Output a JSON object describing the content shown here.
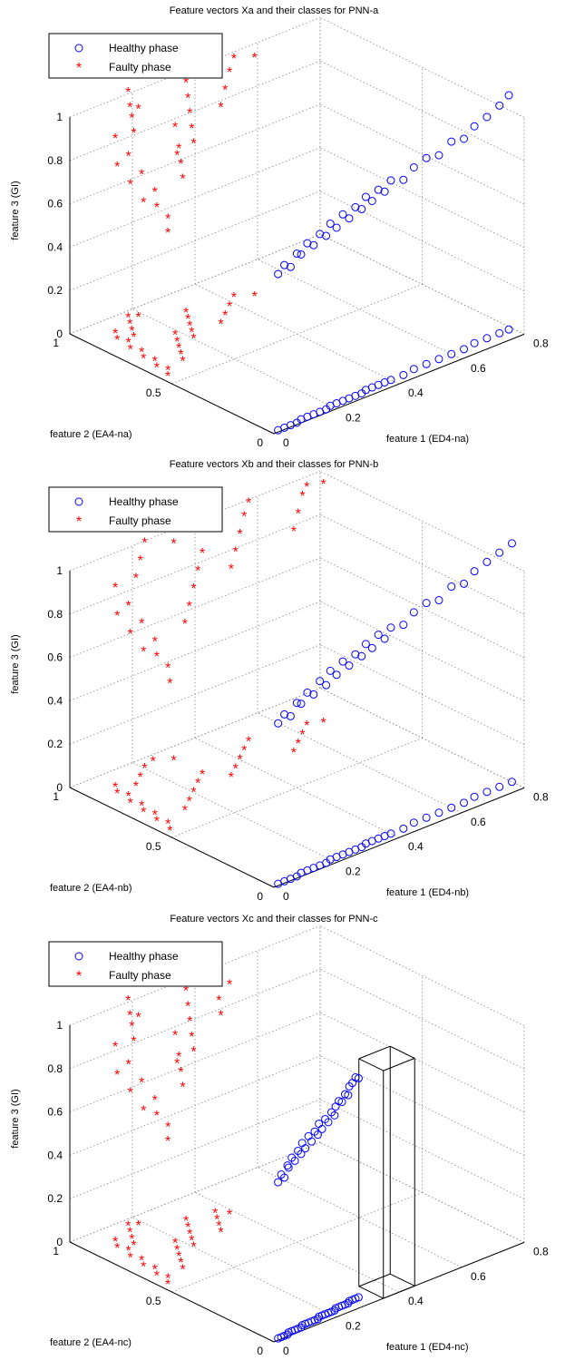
{
  "chart_data": [
    {
      "type": "scatter",
      "projection": "3d",
      "grid": true,
      "legend_placement": "top-left",
      "title": "Feature vectors Xa and their classes for PNN-a",
      "xlabel": "feature 1 (ED4-na)",
      "ylabel": "feature 2 (EA4-na)",
      "zlabel": "feature 3 (GI)",
      "xlim": [
        0,
        0.8
      ],
      "ylim": [
        0,
        1
      ],
      "zlim": [
        0,
        1
      ],
      "xticks": [
        "0",
        "0.2",
        "0.4",
        "0.6",
        "0.8"
      ],
      "yticks": [
        "0",
        "0.5",
        "1"
      ],
      "zticks": [
        "0",
        "0.2",
        "0.4",
        "0.6",
        "0.8",
        "1"
      ],
      "series": [
        {
          "name": "Healthy phase",
          "marker": "circle",
          "color": "#0000ff",
          "points": [
            [
              0.02,
              0.01,
              0.72
            ],
            [
              0.04,
              0.01,
              0.75
            ],
            [
              0.06,
              0.01,
              0.73
            ],
            [
              0.08,
              0.01,
              0.78
            ],
            [
              0.1,
              0.02,
              0.76
            ],
            [
              0.12,
              0.02,
              0.8
            ],
            [
              0.14,
              0.02,
              0.78
            ],
            [
              0.16,
              0.02,
              0.82
            ],
            [
              0.18,
              0.02,
              0.8
            ],
            [
              0.2,
              0.03,
              0.84
            ],
            [
              0.22,
              0.03,
              0.81
            ],
            [
              0.24,
              0.03,
              0.86
            ],
            [
              0.26,
              0.03,
              0.83
            ],
            [
              0.28,
              0.03,
              0.87
            ],
            [
              0.3,
              0.03,
              0.85
            ],
            [
              0.32,
              0.04,
              0.89
            ],
            [
              0.34,
              0.04,
              0.86
            ],
            [
              0.36,
              0.04,
              0.9
            ],
            [
              0.38,
              0.04,
              0.88
            ],
            [
              0.4,
              0.04,
              0.92
            ],
            [
              0.44,
              0.04,
              0.9
            ],
            [
              0.48,
              0.05,
              0.93
            ],
            [
              0.52,
              0.05,
              0.95
            ],
            [
              0.56,
              0.05,
              0.94
            ],
            [
              0.6,
              0.05,
              0.98
            ],
            [
              0.64,
              0.05,
              0.97
            ],
            [
              0.68,
              0.06,
              1.0
            ],
            [
              0.72,
              0.06,
              1.02
            ],
            [
              0.76,
              0.06,
              1.05
            ],
            [
              0.79,
              0.06,
              1.08
            ]
          ]
        },
        {
          "name": "Faulty phase",
          "marker": "asterisk",
          "color": "#ff0000",
          "points": [
            [
              0.02,
              0.55,
              0.66
            ],
            [
              0.04,
              0.58,
              0.7
            ],
            [
              0.03,
              0.62,
              0.74
            ],
            [
              0.05,
              0.66,
              0.78
            ],
            [
              0.04,
              0.7,
              0.72
            ],
            [
              0.06,
              0.74,
              0.82
            ],
            [
              0.05,
              0.78,
              0.76
            ],
            [
              0.07,
              0.82,
              0.86
            ],
            [
              0.06,
              0.86,
              0.8
            ],
            [
              0.08,
              0.9,
              0.9
            ],
            [
              0.1,
              0.6,
              0.84
            ],
            [
              0.12,
              0.64,
              0.88
            ],
            [
              0.14,
              0.68,
              0.92
            ],
            [
              0.16,
              0.72,
              0.86
            ],
            [
              0.18,
              0.76,
              0.96
            ],
            [
              0.1,
              0.84,
              0.94
            ],
            [
              0.12,
              0.88,
              0.98
            ],
            [
              0.14,
              0.92,
              1.0
            ],
            [
              0.16,
              0.96,
              1.04
            ],
            [
              0.18,
              0.94,
              0.96
            ],
            [
              0.2,
              0.7,
              0.9
            ],
            [
              0.22,
              0.74,
              0.94
            ],
            [
              0.24,
              0.78,
              0.98
            ],
            [
              0.26,
              0.82,
              1.02
            ],
            [
              0.28,
              0.86,
              1.06
            ],
            [
              0.3,
              0.72,
              1.0
            ],
            [
              0.34,
              0.76,
              1.04
            ],
            [
              0.38,
              0.8,
              1.08
            ],
            [
              0.42,
              0.84,
              1.12
            ],
            [
              0.46,
              0.8,
              1.1
            ]
          ]
        }
      ]
    },
    {
      "type": "scatter",
      "projection": "3d",
      "grid": true,
      "legend_placement": "top-left",
      "title": "Feature vectors Xb and their classes for PNN-b",
      "xlabel": "feature 1 (ED4-nb)",
      "ylabel": "feature 2 (EA4-nb)",
      "zlabel": "feature 3 (GI)",
      "xlim": [
        0,
        0.8
      ],
      "ylim": [
        0,
        1
      ],
      "zlim": [
        0,
        1
      ],
      "xticks": [
        "0",
        "0.2",
        "0.4",
        "0.6",
        "0.8"
      ],
      "yticks": [
        "0",
        "0.5",
        "1"
      ],
      "zticks": [
        "0",
        "0.2",
        "0.4",
        "0.6",
        "0.8",
        "1"
      ],
      "series": [
        {
          "name": "Healthy phase",
          "marker": "circle",
          "color": "#0000ff",
          "points": [
            [
              0.02,
              0.01,
              0.74
            ],
            [
              0.04,
              0.01,
              0.77
            ],
            [
              0.06,
              0.01,
              0.75
            ],
            [
              0.08,
              0.01,
              0.8
            ],
            [
              0.1,
              0.02,
              0.78
            ],
            [
              0.12,
              0.02,
              0.82
            ],
            [
              0.14,
              0.02,
              0.8
            ],
            [
              0.16,
              0.02,
              0.85
            ],
            [
              0.18,
              0.02,
              0.82
            ],
            [
              0.2,
              0.03,
              0.87
            ],
            [
              0.22,
              0.03,
              0.84
            ],
            [
              0.24,
              0.03,
              0.89
            ],
            [
              0.26,
              0.03,
              0.86
            ],
            [
              0.28,
              0.03,
              0.9
            ],
            [
              0.3,
              0.03,
              0.88
            ],
            [
              0.32,
              0.04,
              0.92
            ],
            [
              0.34,
              0.04,
              0.89
            ],
            [
              0.36,
              0.04,
              0.94
            ],
            [
              0.38,
              0.04,
              0.91
            ],
            [
              0.4,
              0.04,
              0.95
            ],
            [
              0.44,
              0.04,
              0.94
            ],
            [
              0.48,
              0.05,
              0.97
            ],
            [
              0.52,
              0.05,
              0.99
            ],
            [
              0.56,
              0.05,
              0.98
            ],
            [
              0.6,
              0.05,
              1.02
            ],
            [
              0.64,
              0.05,
              1.01
            ],
            [
              0.68,
              0.06,
              1.04
            ],
            [
              0.72,
              0.06,
              1.06
            ],
            [
              0.76,
              0.06,
              1.08
            ],
            [
              0.8,
              0.06,
              1.1
            ]
          ]
        },
        {
          "name": "Faulty phase",
          "marker": "asterisk",
          "color": "#ff0000",
          "points": [
            [
              0.02,
              0.54,
              0.68
            ],
            [
              0.04,
              0.58,
              0.72
            ],
            [
              0.03,
              0.62,
              0.76
            ],
            [
              0.05,
              0.66,
              0.8
            ],
            [
              0.04,
              0.7,
              0.74
            ],
            [
              0.06,
              0.74,
              0.84
            ],
            [
              0.05,
              0.78,
              0.78
            ],
            [
              0.07,
              0.82,
              0.88
            ],
            [
              0.06,
              0.86,
              0.82
            ],
            [
              0.08,
              0.9,
              0.92
            ],
            [
              0.12,
              0.62,
              0.86
            ],
            [
              0.16,
              0.66,
              0.9
            ],
            [
              0.2,
              0.7,
              0.94
            ],
            [
              0.24,
              0.74,
              0.98
            ],
            [
              0.28,
              0.78,
              1.02
            ],
            [
              0.12,
              0.86,
              0.96
            ],
            [
              0.16,
              0.9,
              1.0
            ],
            [
              0.2,
              0.94,
              1.04
            ],
            [
              0.24,
              0.96,
              1.06
            ],
            [
              0.28,
              0.92,
              1.0
            ],
            [
              0.32,
              0.7,
              0.96
            ],
            [
              0.36,
              0.74,
              1.0
            ],
            [
              0.4,
              0.78,
              1.04
            ],
            [
              0.44,
              0.82,
              1.08
            ],
            [
              0.48,
              0.86,
              1.1
            ],
            [
              0.52,
              0.7,
              1.02
            ],
            [
              0.56,
              0.74,
              1.06
            ],
            [
              0.6,
              0.78,
              1.1
            ],
            [
              0.64,
              0.82,
              1.12
            ],
            [
              0.68,
              0.8,
              1.1
            ]
          ]
        }
      ]
    },
    {
      "type": "scatter",
      "projection": "3d",
      "grid": true,
      "legend_placement": "top-left",
      "title": "Feature vectors Xc and their classes for PNN-c",
      "xlabel": "feature 1 (ED4-nc)",
      "ylabel": "feature 2 (EA4-nc)",
      "zlabel": "feature 3 (GI)",
      "xlim": [
        0,
        0.8
      ],
      "ylim": [
        0,
        1
      ],
      "zlim": [
        0,
        1
      ],
      "xticks": [
        "0",
        "0.2",
        "0.4",
        "0.6",
        "0.8"
      ],
      "yticks": [
        "0",
        "0.5",
        "1"
      ],
      "zticks": [
        "0",
        "0.2",
        "0.4",
        "0.6",
        "0.8",
        "1"
      ],
      "box": {
        "x": [
          0.35,
          0.45
        ],
        "y": [
          0.0,
          0.12
        ],
        "z": [
          0.0,
          1.05
        ]
      },
      "series": [
        {
          "name": "Healthy phase",
          "marker": "circle",
          "color": "#0000ff",
          "points": [
            [
              0.02,
              0.01,
              0.72
            ],
            [
              0.03,
              0.01,
              0.75
            ],
            [
              0.04,
              0.01,
              0.73
            ],
            [
              0.05,
              0.01,
              0.78
            ],
            [
              0.06,
              0.02,
              0.76
            ],
            [
              0.07,
              0.02,
              0.8
            ],
            [
              0.08,
              0.02,
              0.78
            ],
            [
              0.09,
              0.02,
              0.82
            ],
            [
              0.1,
              0.02,
              0.8
            ],
            [
              0.11,
              0.03,
              0.84
            ],
            [
              0.12,
              0.03,
              0.81
            ],
            [
              0.13,
              0.03,
              0.86
            ],
            [
              0.14,
              0.03,
              0.83
            ],
            [
              0.15,
              0.03,
              0.87
            ],
            [
              0.16,
              0.03,
              0.85
            ],
            [
              0.17,
              0.04,
              0.89
            ],
            [
              0.18,
              0.04,
              0.86
            ],
            [
              0.19,
              0.04,
              0.9
            ],
            [
              0.2,
              0.04,
              0.88
            ],
            [
              0.21,
              0.04,
              0.92
            ],
            [
              0.22,
              0.04,
              0.9
            ],
            [
              0.23,
              0.05,
              0.93
            ],
            [
              0.24,
              0.05,
              0.95
            ],
            [
              0.25,
              0.05,
              0.94
            ],
            [
              0.26,
              0.05,
              0.97
            ],
            [
              0.27,
              0.05,
              0.96
            ],
            [
              0.28,
              0.06,
              0.99
            ],
            [
              0.29,
              0.06,
              1.0
            ],
            [
              0.3,
              0.06,
              1.02
            ],
            [
              0.31,
              0.06,
              1.01
            ]
          ]
        },
        {
          "name": "Faulty phase",
          "marker": "asterisk",
          "color": "#ff0000",
          "points": [
            [
              0.02,
              0.55,
              0.66
            ],
            [
              0.04,
              0.58,
              0.7
            ],
            [
              0.03,
              0.62,
              0.74
            ],
            [
              0.05,
              0.66,
              0.78
            ],
            [
              0.04,
              0.7,
              0.72
            ],
            [
              0.06,
              0.74,
              0.82
            ],
            [
              0.05,
              0.78,
              0.76
            ],
            [
              0.07,
              0.82,
              0.86
            ],
            [
              0.06,
              0.86,
              0.8
            ],
            [
              0.08,
              0.9,
              0.9
            ],
            [
              0.1,
              0.6,
              0.84
            ],
            [
              0.12,
              0.64,
              0.88
            ],
            [
              0.14,
              0.68,
              0.92
            ],
            [
              0.16,
              0.72,
              0.86
            ],
            [
              0.18,
              0.76,
              0.96
            ],
            [
              0.1,
              0.84,
              0.94
            ],
            [
              0.12,
              0.88,
              0.98
            ],
            [
              0.14,
              0.92,
              1.0
            ],
            [
              0.16,
              0.96,
              1.04
            ],
            [
              0.18,
              0.94,
              0.96
            ],
            [
              0.2,
              0.7,
              0.9
            ],
            [
              0.22,
              0.74,
              0.94
            ],
            [
              0.24,
              0.78,
              0.98
            ],
            [
              0.26,
              0.82,
              1.02
            ],
            [
              0.28,
              0.86,
              1.06
            ],
            [
              0.3,
              0.72,
              1.0
            ],
            [
              0.32,
              0.76,
              1.04
            ],
            [
              0.34,
              0.8,
              1.08
            ],
            [
              0.36,
              0.84,
              1.1
            ],
            [
              0.38,
              0.8,
              1.06
            ]
          ]
        }
      ]
    }
  ]
}
